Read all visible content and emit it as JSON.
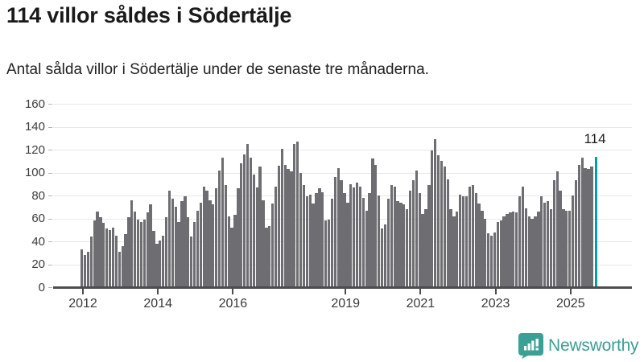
{
  "header": {
    "title": "114 villor såldes i Södertälje",
    "subtitle": "Antal sålda villor i Södertälje under de senaste tre månaderna."
  },
  "chart_data": {
    "type": "bar",
    "title": "114 villor såldes i Södertälje",
    "subtitle": "Antal sålda villor i Södertälje under de senaste tre månaderna.",
    "xlabel": "",
    "ylabel": "",
    "x_start_month": "2012-01",
    "x_end_month": "2025-09",
    "x_frequency": "monthly",
    "values": [
      33,
      28,
      31,
      44,
      58,
      66,
      61,
      56,
      51,
      50,
      52,
      45,
      31,
      36,
      46,
      61,
      76,
      66,
      59,
      57,
      59,
      65,
      72,
      49,
      38,
      41,
      45,
      61,
      84,
      77,
      70,
      57,
      75,
      79,
      61,
      44,
      57,
      67,
      74,
      88,
      84,
      76,
      72,
      86,
      102,
      113,
      89,
      62,
      52,
      63,
      86,
      108,
      116,
      125,
      113,
      98,
      87,
      105,
      76,
      52,
      53,
      73,
      88,
      106,
      121,
      107,
      103,
      101,
      125,
      127,
      100,
      89,
      79,
      81,
      73,
      82,
      86,
      83,
      58,
      59,
      77,
      96,
      104,
      93,
      82,
      74,
      90,
      87,
      91,
      88,
      78,
      67,
      82,
      112,
      107,
      80,
      51,
      55,
      77,
      89,
      88,
      75,
      74,
      72,
      68,
      84,
      93,
      102,
      82,
      64,
      68,
      89,
      119,
      129,
      115,
      110,
      105,
      94,
      68,
      62,
      66,
      81,
      79,
      79,
      88,
      89,
      82,
      73,
      67,
      60,
      47,
      45,
      48,
      57,
      58,
      62,
      64,
      65,
      66,
      65,
      79,
      88,
      69,
      62,
      60,
      62,
      66,
      79,
      74,
      75,
      68,
      93,
      101,
      84,
      68,
      67,
      67,
      80,
      93,
      107,
      113,
      104,
      103,
      105,
      114
    ],
    "highlight_last": {
      "value": 114,
      "label": "114",
      "color": "#00a1a2"
    },
    "bar_color": "#6d6d72",
    "ylim": [
      0,
      160
    ],
    "yticks": [
      0,
      20,
      40,
      60,
      80,
      100,
      120,
      140,
      160
    ],
    "x_tick_years": [
      "2012",
      "2014",
      "2016",
      "2019",
      "2021",
      "2023",
      "2025"
    ],
    "grid": "horizontal",
    "legend": "none"
  },
  "footer": {
    "brand": "Newsworthy",
    "brand_color": "#3aa096",
    "logo_icon": "bar-chart-speech-bubble-icon"
  }
}
